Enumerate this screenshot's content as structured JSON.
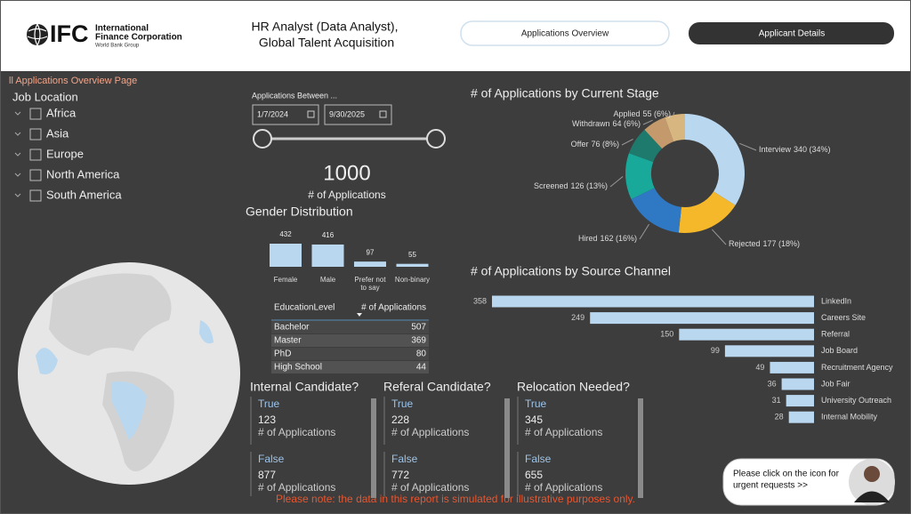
{
  "header": {
    "logo": "IFC",
    "org_line1": "International",
    "org_line2": "Finance Corporation",
    "org_sub": "World Bank Group",
    "title_line1": "HR Analyst (Data Analyst),",
    "title_line2": "Global Talent Acquisition",
    "tabs": [
      "Applications Overview",
      "Applicant Details"
    ]
  },
  "page_label": "ll Applications Overview Page",
  "job_location": {
    "title": "Job Location",
    "options": [
      "Africa",
      "Asia",
      "Europe",
      "North America",
      "South America"
    ]
  },
  "date_filter": {
    "title": "Applications Between ...",
    "start": "1/7/2024",
    "end": "9/30/2025"
  },
  "kpi": {
    "value": 1000,
    "label": "# of Applications"
  },
  "chart_data": [
    {
      "type": "bar",
      "title": "Gender Distribution",
      "categories": [
        "Female",
        "Male",
        "Prefer not to say",
        "Non-binary"
      ],
      "values": [
        432,
        416,
        97,
        55
      ],
      "color": "#b9d7ef"
    },
    {
      "type": "pie",
      "title": "# of Applications by Current Stage",
      "categories": [
        "Interview",
        "Rejected",
        "Hired",
        "Screened",
        "Offer",
        "Withdrawn",
        "Applied"
      ],
      "values": [
        340,
        177,
        162,
        126,
        76,
        64,
        55
      ],
      "value_labels": [
        "340 (34%)",
        "177 (18%)",
        "162 (16%)",
        "126 (13%)",
        "76 (8%)",
        "64 (6%)",
        "55 (6%)"
      ],
      "colors": [
        "#b9d7ef",
        "#f5b82a",
        "#2f78c4",
        "#19a99a",
        "#1e7a6d",
        "#c49a6c",
        "#d8b67f"
      ]
    },
    {
      "type": "hbar",
      "title": "# of Applications by Source Channel",
      "categories": [
        "LinkedIn",
        "Careers Site",
        "Referral",
        "Job Board",
        "Recruitment Agency",
        "Job Fair",
        "University Outreach",
        "Internal Mobility"
      ],
      "values": [
        358,
        249,
        150,
        99,
        49,
        36,
        31,
        28
      ],
      "color": "#b9d7ef"
    }
  ],
  "education_table": {
    "headers": [
      "EducationLevel",
      "# of Applications"
    ],
    "rows": [
      [
        "Bachelor",
        507
      ],
      [
        "Master",
        369
      ],
      [
        "PhD",
        80
      ],
      [
        "High School",
        44
      ]
    ]
  },
  "cards": [
    {
      "title": "Internal Candidate?",
      "true_label": "True",
      "true_value": 123,
      "false_label": "False",
      "false_value": 877,
      "measure": "# of Applications"
    },
    {
      "title": "Referal Candidate?",
      "true_label": "True",
      "true_value": 228,
      "false_label": "False",
      "false_value": 772,
      "measure": "# of Applications"
    },
    {
      "title": "Relocation Needed?",
      "true_label": "True",
      "true_value": 345,
      "false_label": "False",
      "false_value": 655,
      "measure": "# of Applications"
    }
  ],
  "footnote": "Please note: the data in this report is simulated for illustrative purposes only.",
  "urgent": {
    "line1": "Please click on the icon for",
    "line2": "urgent requests >>"
  }
}
